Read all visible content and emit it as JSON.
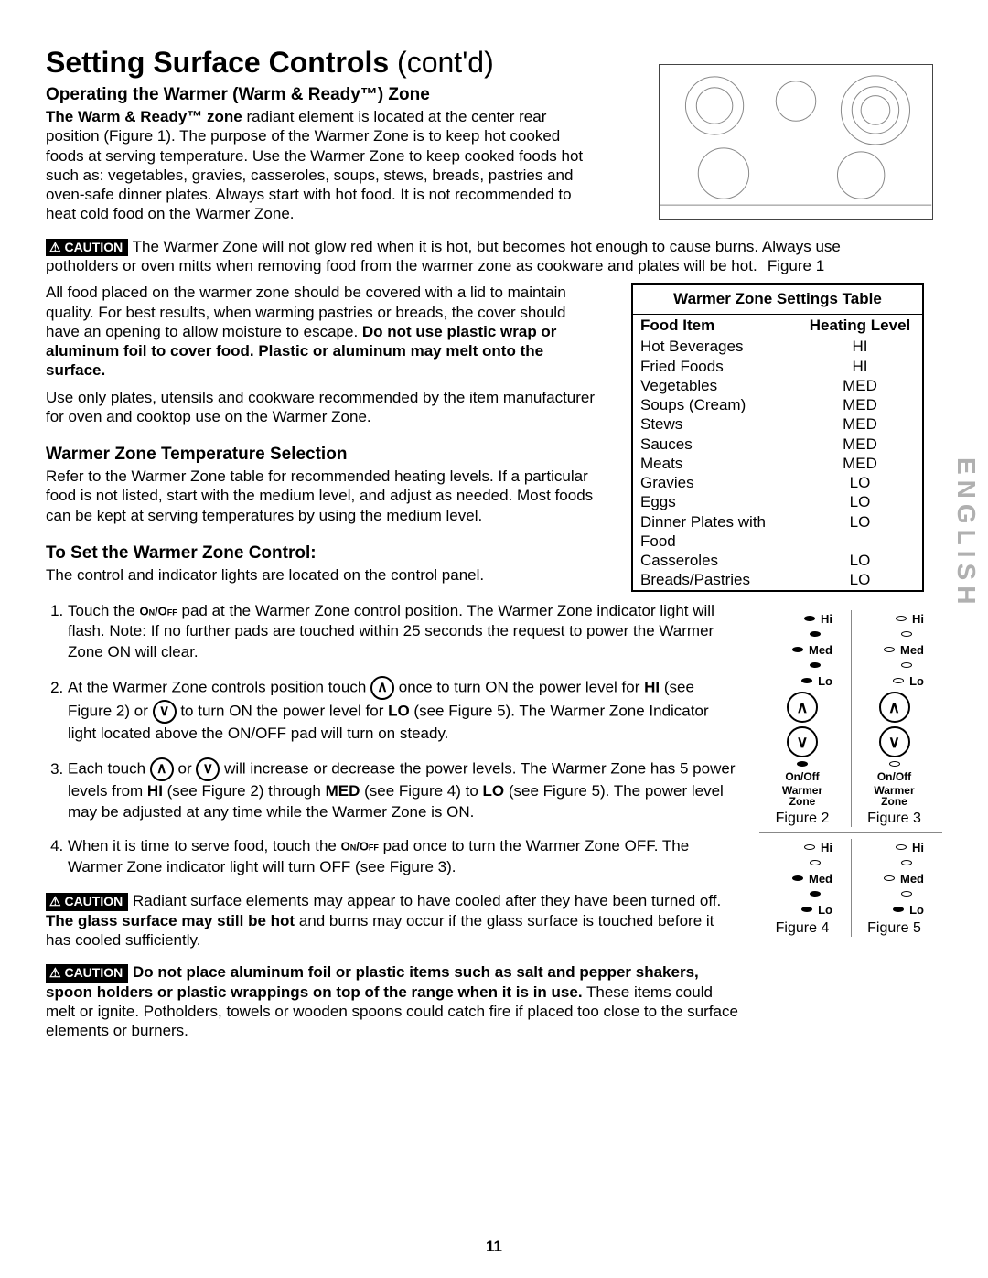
{
  "page_number": "11",
  "language_tab": "ENGLISH",
  "title_main": "Setting Surface Controls",
  "title_contd": "(cont'd)",
  "section1": {
    "heading": "Operating the Warmer (Warm & Ready™) Zone",
    "intro_bold_lead": "The Warm & Ready™ zone",
    "intro_rest": " radiant element is located at the center rear position (Figure 1). The purpose of the Warmer Zone is to keep hot cooked foods at serving temperature. Use the Warmer Zone to keep cooked foods hot such as: vegetables, gravies, casseroles, soups, stews, breads, pastries and oven-safe dinner plates. Always start with hot food. It is not recommended to heat cold food on the Warmer Zone."
  },
  "caution1": {
    "label": "CAUTION",
    "text": "The Warmer Zone will not glow red when it is hot, but becomes hot enough to cause burns.  Always use potholders or oven mitts when removing food from the warmer zone as cookware and plates will be hot."
  },
  "para_cover": {
    "text_a": "All food placed on the warmer zone should be covered with a lid to maintain quality.  For best results, when warming pastries or breads, the cover should have an opening to allow moisture to escape. ",
    "bold_b": "Do not use plastic wrap or aluminum foil to cover food. Plastic or aluminum may melt onto the surface."
  },
  "para_cookware": "Use only plates, utensils and cookware recommended by the item manufacturer for oven and cooktop use on the Warmer Zone.",
  "section2": {
    "heading": "Warmer Zone Temperature Selection",
    "text": "Refer to the Warmer Zone table for recommended heating levels. If a particular food is not listed, start with the medium level, and adjust as needed. Most foods can be kept at serving temperatures by using the medium level."
  },
  "section3": {
    "heading": "To Set the Warmer Zone Control:",
    "lead": "The control and indicator lights are located on the control panel."
  },
  "steps": {
    "s1a": "Touch the ",
    "s1_pad": "On/Off",
    "s1b": " pad at the Warmer Zone control position. The Warmer Zone indicator light will flash. Note: If no further pads are touched within 25 seconds the request to power the Warmer Zone ON will clear.",
    "s2a": "At the Warmer Zone controls position touch ",
    "s2b": " once to turn ON the power level for ",
    "s2_hi": "HI",
    "s2c": " (see Figure 2) or ",
    "s2d": " to turn ON the power level for ",
    "s2_lo": "LO",
    "s2e": " (see Figure 5). The Warmer Zone Indicator light located above the ON/OFF pad will turn on steady.",
    "s3a": "Each touch ",
    "s3b": " or ",
    "s3c": " will increase or decrease the power levels. The Warmer Zone has 5 power levels from ",
    "s3_hi": "HI",
    "s3d": " (see Figure 2) through ",
    "s3_med": "MED",
    "s3e": " (see Figure 4) to ",
    "s3_lo": "LO",
    "s3f": " (see Figure 5). The power level may be adjusted at any time while the Warmer Zone is ON.",
    "s4a": "When it is time to serve food, touch the ",
    "s4_pad": "On/Off",
    "s4b": " pad once to turn the Warmer Zone OFF. The Warmer Zone indicator light will turn OFF (see Figure 3)."
  },
  "caution2": {
    "label": "CAUTION",
    "text_a": "Radiant surface elements may appear to have cooled after they have been turned off. ",
    "bold": "The glass surface may still be hot",
    "text_b": " and burns may occur if the glass surface is touched before it has cooled sufficiently."
  },
  "caution3": {
    "label": "CAUTION",
    "bold": "Do not place aluminum foil or plastic items such as salt and pepper shakers, spoon holders or plastic wrappings on top of the range when it is in use.",
    "text": " These items could melt or ignite. Potholders, towels or wooden spoons could catch fire if placed too close to the surface elements or burners."
  },
  "figure1": {
    "caption": "Figure 1"
  },
  "table": {
    "title": "Warmer Zone  Settings Table",
    "col1": "Food Item",
    "col2": "Heating Level",
    "rows": [
      {
        "item": "Hot Beverages",
        "level": "HI"
      },
      {
        "item": "Fried Foods",
        "level": "HI"
      },
      {
        "item": "Vegetables",
        "level": "MED"
      },
      {
        "item": "Soups (Cream)",
        "level": "MED"
      },
      {
        "item": "Stews",
        "level": "MED"
      },
      {
        "item": "Sauces",
        "level": "MED"
      },
      {
        "item": "Meats",
        "level": "MED"
      },
      {
        "item": "Gravies",
        "level": "LO"
      },
      {
        "item": "Eggs",
        "level": "LO"
      },
      {
        "item": "Dinner Plates with Food",
        "level": "LO"
      },
      {
        "item": "Casseroles",
        "level": "LO"
      },
      {
        "item": "Breads/Pastries",
        "level": "LO"
      }
    ]
  },
  "controls": {
    "hi": "Hi",
    "med": "Med",
    "lo": "Lo",
    "onoff": "On/Off",
    "wz1": "Warmer",
    "wz2": "Zone",
    "fig2": "Figure 2",
    "fig3": "Figure 3",
    "fig4": "Figure 4",
    "fig5": "Figure 5"
  }
}
